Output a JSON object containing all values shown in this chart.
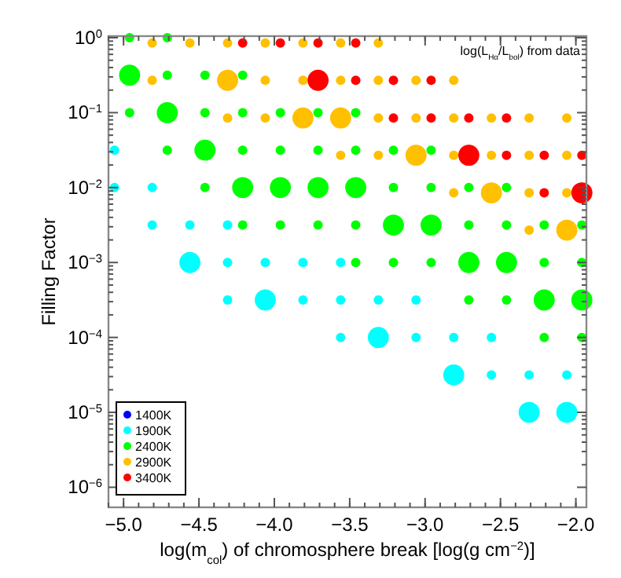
{
  "chart_data": {
    "type": "bubble",
    "xlabel": "log(m$_{col}$) of chromosphere break [log(g cm$^{−2}$)]",
    "ylabel": "Filling Factor",
    "annotations": [
      "log(L$_{Hα}$/L$_{bol}$) from data"
    ],
    "log": "y",
    "grid": false,
    "legend": "bottom left",
    "marker": "circle",
    "xlim": [
      -5.1,
      -1.93
    ],
    "xticks": [
      {
        "value": -5.0,
        "label": "−5.0"
      },
      {
        "value": -4.5,
        "label": "−4.5"
      },
      {
        "value": -4.0,
        "label": "−4.0"
      },
      {
        "value": -3.5,
        "label": "−3.5"
      },
      {
        "value": -3.0,
        "label": "−3.0"
      },
      {
        "value": -2.5,
        "label": "−2.5"
      },
      {
        "value": -2.0,
        "label": "−2.0"
      }
    ],
    "ylim": [
      5.4e-07,
      1.05
    ],
    "yticks": [
      {
        "value": 1,
        "label": "10$^{0}$"
      },
      {
        "value": 0.1,
        "label": "10$^{−1}$"
      },
      {
        "value": 0.01,
        "label": "10$^{−2}$"
      },
      {
        "value": 0.001,
        "label": "10$^{−3}$"
      },
      {
        "value": 0.0001,
        "label": "10$^{−4}$"
      },
      {
        "value": 1e-05,
        "label": "10$^{−5}$"
      },
      {
        "value": 1e-06,
        "label": "10$^{−6}$"
      }
    ],
    "series": [
      {
        "name": "1400K",
        "color": "#0000ff"
      },
      {
        "name": "1900K",
        "color": "#00ffff",
        "x": [
          -5.06,
          -5.06,
          -4.81,
          -4.81,
          -4.56,
          -4.31,
          -4.56,
          -4.31,
          -4.06,
          -3.81,
          -3.56,
          -4.31,
          -4.06,
          -3.81,
          -3.56,
          -3.31,
          -3.06,
          -3.56,
          -3.31,
          -3.06,
          -2.81,
          -2.56,
          -2.81,
          -2.56,
          -2.31,
          -2.06,
          -2.31,
          -2.06
        ],
        "values": [
          0.0316,
          0.01,
          0.01,
          0.00316,
          0.00316,
          0.00316,
          0.001,
          0.001,
          0.001,
          0.001,
          0.001,
          0.000316,
          0.000316,
          0.000316,
          0.000316,
          0.000316,
          0.000316,
          0.0001,
          0.0001,
          0.0001,
          0.0001,
          0.0001,
          3.16e-05,
          3.16e-05,
          3.16e-05,
          3.16e-05,
          1e-05,
          1e-05
        ],
        "sizes": [
          0.2,
          0.2,
          0.2,
          0.2,
          0.2,
          0.2,
          1,
          0.2,
          0.2,
          0.2,
          0.2,
          0.2,
          1,
          0.2,
          0.2,
          0.2,
          0.2,
          0.2,
          1,
          0.2,
          0.2,
          0.2,
          1,
          0.2,
          0.2,
          0.2,
          1,
          1
        ]
      },
      {
        "name": "2400K",
        "color": "#00ff00",
        "x": [
          -4.96,
          -4.71,
          -4.96,
          -4.71,
          -4.46,
          -4.21,
          -4.96,
          -4.71,
          -4.46,
          -4.21,
          -3.96,
          -3.71,
          -3.46,
          -4.71,
          -4.46,
          -4.21,
          -3.96,
          -3.71,
          -3.46,
          -3.21,
          -2.96,
          -4.46,
          -4.21,
          -3.96,
          -3.71,
          -3.46,
          -3.21,
          -2.96,
          -2.71,
          -2.46,
          -4.21,
          -3.96,
          -3.71,
          -3.46,
          -3.21,
          -2.96,
          -2.71,
          -2.46,
          -2.21,
          -1.96,
          -3.46,
          -3.21,
          -2.96,
          -2.71,
          -2.46,
          -2.21,
          -1.96,
          -2.71,
          -2.46,
          -2.21,
          -1.96,
          -2.21,
          -1.96
        ],
        "values": [
          1,
          1,
          0.316,
          0.316,
          0.316,
          0.316,
          0.1,
          0.1,
          0.1,
          0.1,
          0.1,
          0.1,
          0.1,
          0.0316,
          0.0316,
          0.0316,
          0.0316,
          0.0316,
          0.0316,
          0.0316,
          0.0316,
          0.01,
          0.01,
          0.01,
          0.01,
          0.01,
          0.01,
          0.01,
          0.01,
          0.01,
          0.00316,
          0.00316,
          0.00316,
          0.00316,
          0.00316,
          0.00316,
          0.00316,
          0.00316,
          0.00316,
          0.00316,
          0.001,
          0.001,
          0.001,
          0.001,
          0.001,
          0.001,
          0.001,
          0.000316,
          0.000316,
          0.000316,
          0.000316,
          0.0001,
          0.0001
        ],
        "sizes": [
          0.2,
          0.2,
          1,
          0.2,
          0.2,
          0.2,
          0.2,
          1,
          0.2,
          0.2,
          0.2,
          0.2,
          0.2,
          0.2,
          1,
          0.2,
          0.2,
          0.2,
          0.2,
          0.2,
          0.2,
          0.2,
          1,
          1,
          1,
          1,
          0.2,
          0.2,
          0.2,
          0.2,
          0.2,
          0.2,
          0.2,
          0.2,
          1,
          1,
          0.2,
          0.2,
          0.2,
          0.2,
          0.2,
          0.2,
          0.2,
          1,
          1,
          0.2,
          0.2,
          0.2,
          0.2,
          1,
          1,
          0.2,
          0.2
        ]
      },
      {
        "name": "2900K",
        "color": "#ffc000",
        "x": [
          -4.81,
          -4.56,
          -4.31,
          -4.06,
          -3.81,
          -3.56,
          -3.31,
          -4.81,
          -4.31,
          -4.06,
          -3.81,
          -3.56,
          -3.31,
          -3.06,
          -2.81,
          -4.31,
          -4.06,
          -3.81,
          -3.56,
          -3.31,
          -3.06,
          -2.81,
          -2.56,
          -2.31,
          -2.06,
          -3.56,
          -3.31,
          -3.06,
          -2.81,
          -2.56,
          -2.31,
          -2.06,
          -2.81,
          -2.56,
          -2.31,
          -2.06,
          -2.31,
          -2.06
        ],
        "values": [
          0.85,
          0.85,
          0.85,
          0.85,
          0.85,
          0.85,
          0.85,
          0.27,
          0.27,
          0.27,
          0.27,
          0.27,
          0.27,
          0.27,
          0.27,
          0.085,
          0.085,
          0.085,
          0.085,
          0.085,
          0.085,
          0.085,
          0.085,
          0.085,
          0.085,
          0.027,
          0.027,
          0.027,
          0.027,
          0.027,
          0.027,
          0.027,
          0.0085,
          0.0085,
          0.0085,
          0.0085,
          0.0027,
          0.0027
        ],
        "sizes": [
          0.2,
          0.2,
          0.2,
          0.2,
          0.2,
          0.2,
          0.2,
          0.2,
          1,
          0.2,
          0.2,
          0.2,
          0.2,
          0.2,
          0.2,
          0.2,
          0.2,
          1,
          1,
          0.2,
          0.2,
          0.2,
          0.2,
          0.2,
          0.2,
          0.2,
          0.2,
          1,
          0.2,
          0.2,
          0.2,
          0.2,
          0.2,
          1,
          0.2,
          0.2,
          0.2,
          1
        ]
      },
      {
        "name": "3400K",
        "color": "#ff0000",
        "x": [
          -4.21,
          -3.96,
          -3.71,
          -3.46,
          -3.71,
          -3.46,
          -3.21,
          -2.96,
          -3.21,
          -2.96,
          -2.71,
          -2.46,
          -2.71,
          -2.46,
          -2.21,
          -1.96,
          -2.21,
          -1.96
        ],
        "values": [
          0.85,
          0.85,
          0.85,
          0.85,
          0.27,
          0.27,
          0.27,
          0.27,
          0.085,
          0.085,
          0.085,
          0.085,
          0.027,
          0.027,
          0.027,
          0.027,
          0.0085,
          0.0085
        ],
        "sizes": [
          0.2,
          0.2,
          0.2,
          0.2,
          1,
          0.2,
          0.2,
          0.2,
          0.2,
          0.2,
          0.2,
          0.2,
          1,
          0.2,
          0.2,
          0.2,
          0.2,
          1
        ]
      }
    ]
  }
}
